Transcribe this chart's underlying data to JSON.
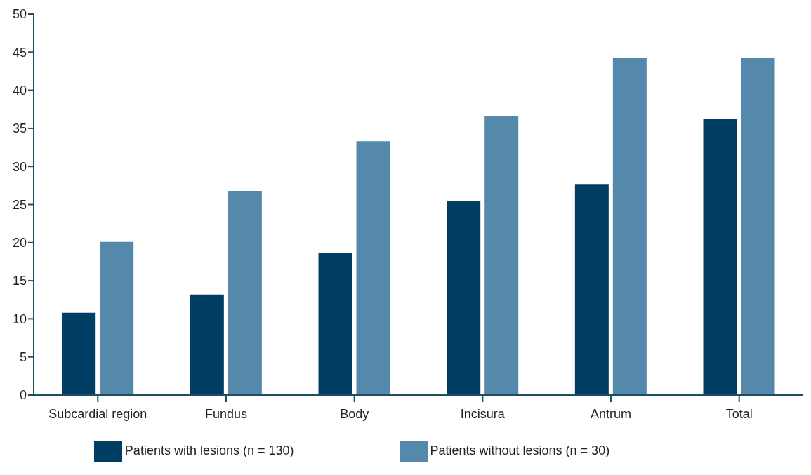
{
  "chart_data": {
    "type": "bar",
    "categories": [
      "Subcardial region",
      "Fundus",
      "Body",
      "Incisura",
      "Antrum",
      "Total"
    ],
    "series": [
      {
        "name": "Patients with lesions (n = 130)",
        "color": "#003f63",
        "values": [
          10.8,
          13.2,
          18.6,
          25.5,
          27.7,
          36.2
        ]
      },
      {
        "name": "Patients without lesions (n = 30)",
        "color": "#5589ab",
        "values": [
          20.1,
          26.8,
          33.3,
          36.6,
          44.2,
          44.2
        ]
      }
    ],
    "ylim": [
      0,
      50
    ],
    "yticks": [
      0,
      5,
      10,
      15,
      20,
      25,
      30,
      35,
      40,
      45,
      50
    ],
    "grid": false,
    "legend": "bottom"
  }
}
